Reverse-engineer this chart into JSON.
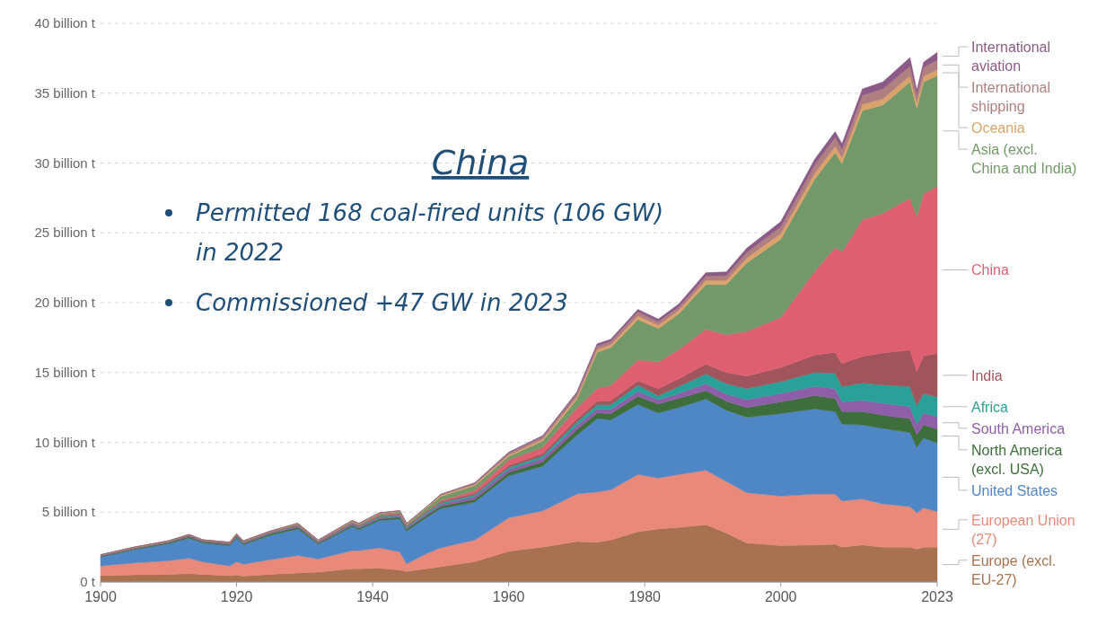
{
  "chart_data": {
    "type": "area",
    "stacked": true,
    "legend": "right",
    "grid": "y",
    "annotations": [
      "China",
      "Permitted 168 coal-fired units (106 GW) in 2022",
      "Commissioned +47 GW in 2023"
    ],
    "x": [
      1900,
      1905,
      1910,
      1913,
      1915,
      1919,
      1920,
      1921,
      1925,
      1929,
      1932,
      1937,
      1938,
      1941,
      1944,
      1945,
      1948,
      1950,
      1955,
      1960,
      1965,
      1970,
      1973,
      1975,
      1979,
      1982,
      1985,
      1989,
      1992,
      1995,
      2000,
      2005,
      2008,
      2009,
      2012,
      2015,
      2019,
      2020,
      2021,
      2023
    ],
    "xlim": [
      1900,
      2023
    ],
    "xticks": [
      1900,
      1920,
      1940,
      1960,
      1980,
      2000,
      2023
    ],
    "ylim": [
      0,
      40
    ],
    "yticks": [
      {
        "value": 0,
        "label": "0 t"
      },
      {
        "value": 5,
        "label": "5 billion t"
      },
      {
        "value": 10,
        "label": "10 billion t"
      },
      {
        "value": 15,
        "label": "15 billion t"
      },
      {
        "value": 20,
        "label": "20 billion t"
      },
      {
        "value": 25,
        "label": "25 billion t"
      },
      {
        "value": 30,
        "label": "30 billion t"
      },
      {
        "value": 35,
        "label": "35 billion t"
      },
      {
        "value": 40,
        "label": "40 billion t"
      }
    ],
    "series": [
      {
        "name": "Europe (excl. EU-27)",
        "color": "#a8714f",
        "values": [
          0.45,
          0.52,
          0.55,
          0.6,
          0.55,
          0.45,
          0.5,
          0.42,
          0.55,
          0.65,
          0.7,
          0.95,
          0.95,
          1.0,
          0.85,
          0.75,
          0.95,
          1.1,
          1.45,
          2.2,
          2.5,
          2.9,
          2.85,
          3.0,
          3.6,
          3.8,
          3.9,
          4.1,
          3.5,
          2.8,
          2.6,
          2.65,
          2.7,
          2.5,
          2.65,
          2.5,
          2.5,
          2.35,
          2.5,
          2.5
        ]
      },
      {
        "name": "European Union (27)",
        "color": "#e8897a",
        "values": [
          0.7,
          0.85,
          0.98,
          1.1,
          0.9,
          0.7,
          0.95,
          0.85,
          1.05,
          1.25,
          0.95,
          1.3,
          1.3,
          1.45,
          1.3,
          0.55,
          1.1,
          1.35,
          1.55,
          2.4,
          2.6,
          3.4,
          3.6,
          3.6,
          4.1,
          3.65,
          3.8,
          3.9,
          3.7,
          3.6,
          3.55,
          3.65,
          3.6,
          3.3,
          3.3,
          3.1,
          2.9,
          2.6,
          2.8,
          2.55
        ]
      },
      {
        "name": "United States",
        "color": "#4f86c6",
        "values": [
          0.65,
          0.95,
          1.2,
          1.45,
          1.35,
          1.45,
          1.7,
          1.4,
          1.75,
          1.9,
          1.05,
          1.7,
          1.5,
          1.95,
          2.35,
          2.35,
          2.6,
          2.8,
          2.72,
          3.0,
          3.2,
          4.2,
          5.25,
          5.0,
          5.0,
          4.65,
          4.8,
          5.1,
          5.1,
          5.4,
          5.9,
          6.1,
          5.9,
          5.5,
          5.3,
          5.4,
          5.3,
          4.7,
          5.0,
          4.9
        ]
      },
      {
        "name": "North America (excl. USA)",
        "color": "#3d6e3b",
        "values": [
          0.05,
          0.06,
          0.08,
          0.1,
          0.08,
          0.08,
          0.1,
          0.08,
          0.1,
          0.12,
          0.08,
          0.1,
          0.1,
          0.12,
          0.15,
          0.14,
          0.15,
          0.17,
          0.2,
          0.25,
          0.3,
          0.4,
          0.4,
          0.45,
          0.6,
          0.65,
          0.65,
          0.6,
          0.65,
          0.7,
          0.85,
          0.95,
          0.95,
          0.9,
          0.95,
          0.95,
          1.0,
          0.9,
          0.95,
          1.0
        ]
      },
      {
        "name": "South America",
        "color": "#8f5ea8",
        "values": [
          0.02,
          0.03,
          0.03,
          0.04,
          0.03,
          0.04,
          0.05,
          0.05,
          0.06,
          0.08,
          0.06,
          0.09,
          0.09,
          0.1,
          0.1,
          0.1,
          0.12,
          0.15,
          0.2,
          0.22,
          0.25,
          0.3,
          0.3,
          0.32,
          0.35,
          0.3,
          0.35,
          0.5,
          0.5,
          0.55,
          0.6,
          0.65,
          0.7,
          0.7,
          0.8,
          0.85,
          0.85,
          0.75,
          0.85,
          0.9
        ]
      },
      {
        "name": "Africa",
        "color": "#2aa198",
        "values": [
          0.01,
          0.01,
          0.02,
          0.02,
          0.02,
          0.02,
          0.03,
          0.03,
          0.03,
          0.04,
          0.04,
          0.06,
          0.06,
          0.07,
          0.08,
          0.08,
          0.09,
          0.1,
          0.13,
          0.15,
          0.18,
          0.25,
          0.3,
          0.33,
          0.45,
          0.3,
          0.5,
          0.7,
          0.75,
          0.8,
          0.85,
          1.0,
          1.1,
          1.1,
          1.25,
          1.3,
          1.45,
          1.35,
          1.4,
          1.4
        ]
      },
      {
        "name": "India",
        "color": "#a0555c",
        "values": [
          0.02,
          0.02,
          0.03,
          0.03,
          0.03,
          0.03,
          0.03,
          0.03,
          0.03,
          0.04,
          0.03,
          0.05,
          0.05,
          0.06,
          0.06,
          0.06,
          0.07,
          0.08,
          0.1,
          0.12,
          0.16,
          0.2,
          0.25,
          0.28,
          0.3,
          0.5,
          0.55,
          0.7,
          0.8,
          0.9,
          1.0,
          1.25,
          1.5,
          1.65,
          1.9,
          2.3,
          2.6,
          2.4,
          2.7,
          3.1
        ]
      },
      {
        "name": "China",
        "color": "#de5f70",
        "values": [
          0.01,
          0.01,
          0.01,
          0.02,
          0.02,
          0.02,
          0.02,
          0.02,
          0.02,
          0.03,
          0.03,
          0.04,
          0.04,
          0.05,
          0.05,
          0.03,
          0.04,
          0.08,
          0.2,
          0.4,
          0.45,
          0.8,
          0.9,
          1.1,
          1.5,
          1.9,
          2.1,
          2.5,
          2.7,
          3.2,
          3.6,
          6.0,
          7.5,
          8.0,
          9.8,
          10.0,
          10.9,
          11.1,
          11.6,
          12.0
        ]
      },
      {
        "name": "Asia (excl. China and India)",
        "color": "#73996a",
        "values": [
          0.02,
          0.02,
          0.02,
          0.02,
          0.02,
          0.03,
          0.04,
          0.04,
          0.03,
          0.05,
          0.03,
          0.06,
          0.06,
          0.1,
          0.11,
          0.09,
          0.22,
          0.3,
          0.35,
          0.25,
          0.45,
          0.6,
          2.6,
          2.7,
          2.9,
          2.4,
          2.55,
          3.2,
          3.6,
          4.9,
          5.6,
          6.6,
          6.8,
          6.3,
          7.8,
          7.75,
          8.3,
          7.75,
          8.0,
          7.9
        ]
      },
      {
        "name": "Oceania",
        "color": "#d9a36b",
        "values": [
          0.02,
          0.03,
          0.03,
          0.02,
          0.02,
          0.02,
          0.03,
          0.03,
          0.03,
          0.04,
          0.03,
          0.05,
          0.05,
          0.05,
          0.05,
          0.05,
          0.06,
          0.07,
          0.08,
          0.1,
          0.13,
          0.17,
          0.2,
          0.2,
          0.25,
          0.25,
          0.25,
          0.3,
          0.3,
          0.35,
          0.4,
          0.43,
          0.45,
          0.45,
          0.45,
          0.45,
          0.45,
          0.42,
          0.42,
          0.42
        ]
      },
      {
        "name": "International shipping",
        "color": "#b07f7f",
        "values": [
          0,
          0,
          0,
          0,
          0,
          0,
          0,
          0,
          0,
          0,
          0,
          0,
          0,
          0,
          0,
          0,
          0,
          0.07,
          0.09,
          0.15,
          0.18,
          0.25,
          0.25,
          0.25,
          0.3,
          0.25,
          0.25,
          0.3,
          0.35,
          0.4,
          0.5,
          0.6,
          0.65,
          0.6,
          0.65,
          0.7,
          0.7,
          0.6,
          0.65,
          0.7
        ]
      },
      {
        "name": "International aviation",
        "color": "#8c5a86",
        "values": [
          0,
          0,
          0,
          0,
          0,
          0,
          0,
          0,
          0,
          0,
          0,
          0,
          0,
          0,
          0,
          0,
          0,
          0.01,
          0.03,
          0.06,
          0.08,
          0.12,
          0.15,
          0.15,
          0.17,
          0.17,
          0.2,
          0.25,
          0.25,
          0.3,
          0.35,
          0.4,
          0.4,
          0.38,
          0.45,
          0.5,
          0.6,
          0.3,
          0.35,
          0.55
        ]
      }
    ]
  }
}
